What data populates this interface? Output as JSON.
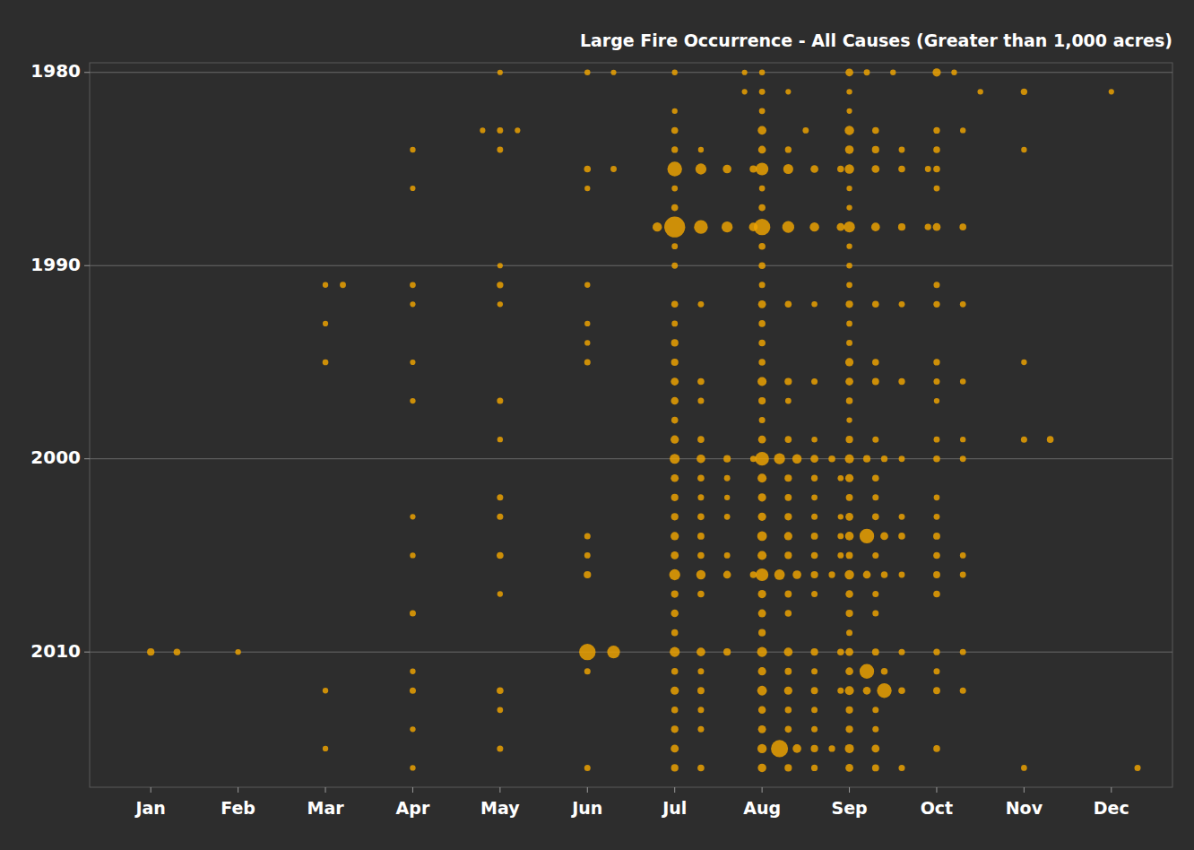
{
  "chart_data": {
    "type": "bubble",
    "title": "Large Fire Occurrence - All Causes (Greater than 1,000 acres)",
    "color": "#f0a500",
    "grid": "y",
    "xlim": [
      0.3,
      12.7
    ],
    "xticks": [
      {
        "value": 1,
        "label": "Jan"
      },
      {
        "value": 2,
        "label": "Feb"
      },
      {
        "value": 3,
        "label": "Mar"
      },
      {
        "value": 4,
        "label": "Apr"
      },
      {
        "value": 5,
        "label": "May"
      },
      {
        "value": 6,
        "label": "Jun"
      },
      {
        "value": 7,
        "label": "Jul"
      },
      {
        "value": 8,
        "label": "Aug"
      },
      {
        "value": 9,
        "label": "Sep"
      },
      {
        "value": 10,
        "label": "Oct"
      },
      {
        "value": 11,
        "label": "Nov"
      },
      {
        "value": 12,
        "label": "Dec"
      }
    ],
    "ylim": [
      2017.0,
      1979.5
    ],
    "yticks": [
      1980,
      1990,
      2000,
      2010
    ],
    "x": [
      5.0,
      6.0,
      6.3,
      7.0,
      7.8,
      8.0,
      9.0,
      9.2,
      9.5,
      10.0,
      10.2,
      7.8,
      8.0,
      8.3,
      9.0,
      10.5,
      11.0,
      12.0,
      7.0,
      8.0,
      9.0,
      4.8,
      5.0,
      5.2,
      7.0,
      8.0,
      8.5,
      9.0,
      9.3,
      10.0,
      10.3,
      4.0,
      5.0,
      7.0,
      7.3,
      8.0,
      8.3,
      9.0,
      9.3,
      9.6,
      10.0,
      11.0,
      6.0,
      6.3,
      7.0,
      7.3,
      7.6,
      7.9,
      8.0,
      8.3,
      8.6,
      8.9,
      9.0,
      9.3,
      9.6,
      9.9,
      10.0,
      4.0,
      6.0,
      7.0,
      8.0,
      9.0,
      10.0,
      7.0,
      8.0,
      9.0,
      6.8,
      7.0,
      7.3,
      7.6,
      7.9,
      8.0,
      8.3,
      8.6,
      8.9,
      9.0,
      9.3,
      9.6,
      9.9,
      10.0,
      10.3,
      7.0,
      8.0,
      9.0,
      5.0,
      7.0,
      8.0,
      9.0,
      3.0,
      3.2,
      4.0,
      5.0,
      6.0,
      8.0,
      9.0,
      10.0,
      4.0,
      5.0,
      7.0,
      7.3,
      8.0,
      8.3,
      8.6,
      9.0,
      9.3,
      9.6,
      10.0,
      10.3,
      3.0,
      6.0,
      7.0,
      8.0,
      9.0,
      6.0,
      7.0,
      8.0,
      9.0,
      3.0,
      4.0,
      6.0,
      7.0,
      8.0,
      9.0,
      9.3,
      10.0,
      11.0,
      7.0,
      7.3,
      8.0,
      8.3,
      8.6,
      9.0,
      9.3,
      9.6,
      10.0,
      10.3,
      4.0,
      5.0,
      7.0,
      7.3,
      8.0,
      8.3,
      9.0,
      10.0,
      7.0,
      8.0,
      9.0,
      5.0,
      7.0,
      7.3,
      8.0,
      8.3,
      8.6,
      9.0,
      9.3,
      10.0,
      10.3,
      11.0,
      11.3,
      7.0,
      7.3,
      7.6,
      7.9,
      8.0,
      8.2,
      8.4,
      8.6,
      8.8,
      9.0,
      9.2,
      9.4,
      9.6,
      10.0,
      10.3,
      7.0,
      7.3,
      7.6,
      8.0,
      8.3,
      8.6,
      8.9,
      9.0,
      9.3,
      5.0,
      7.0,
      7.3,
      7.6,
      8.0,
      8.3,
      8.6,
      9.0,
      9.3,
      10.0,
      4.0,
      5.0,
      7.0,
      7.3,
      7.6,
      8.0,
      8.3,
      8.6,
      8.9,
      9.0,
      9.3,
      9.6,
      10.0,
      6.0,
      7.0,
      7.3,
      8.0,
      8.3,
      8.6,
      8.9,
      9.0,
      9.2,
      9.4,
      9.6,
      10.0,
      4.0,
      5.0,
      6.0,
      7.0,
      7.3,
      7.6,
      8.0,
      8.3,
      8.6,
      8.9,
      9.0,
      9.3,
      10.0,
      10.3,
      6.0,
      7.0,
      7.3,
      7.6,
      7.9,
      8.0,
      8.2,
      8.4,
      8.6,
      8.8,
      9.0,
      9.2,
      9.4,
      9.6,
      10.0,
      10.3,
      5.0,
      7.0,
      7.3,
      8.0,
      8.3,
      8.6,
      9.0,
      9.3,
      10.0,
      4.0,
      7.0,
      8.0,
      8.3,
      9.0,
      9.3,
      7.0,
      8.0,
      9.0,
      1.0,
      1.3,
      2.0,
      6.0,
      6.3,
      7.0,
      7.3,
      7.6,
      8.0,
      8.3,
      8.6,
      8.9,
      9.0,
      9.3,
      9.6,
      10.0,
      10.3,
      4.0,
      6.0,
      7.0,
      7.3,
      8.0,
      8.3,
      8.6,
      9.0,
      9.2,
      9.4,
      10.0,
      3.0,
      4.0,
      5.0,
      7.0,
      7.3,
      8.0,
      8.3,
      8.6,
      8.9,
      9.0,
      9.2,
      9.4,
      9.6,
      10.0,
      10.3,
      5.0,
      7.0,
      7.3,
      8.0,
      8.3,
      8.6,
      9.0,
      9.3,
      4.0,
      7.0,
      7.3,
      8.0,
      8.3,
      8.6,
      9.0,
      9.3,
      3.0,
      5.0,
      7.0,
      8.0,
      8.2,
      8.4,
      8.6,
      8.8,
      9.0,
      9.3,
      10.0,
      4.0,
      6.0,
      7.0,
      7.3,
      8.0,
      8.3,
      8.6,
      9.0,
      9.3,
      9.6,
      11.0,
      12.3
    ],
    "values": [
      1980,
      1980,
      1980,
      1980,
      1980,
      1980,
      1980,
      1980,
      1980,
      1980,
      1980,
      1981,
      1981,
      1981,
      1981,
      1981,
      1981,
      1981,
      1982,
      1982,
      1982,
      1983,
      1983,
      1983,
      1983,
      1983,
      1983,
      1983,
      1983,
      1983,
      1983,
      1984,
      1984,
      1984,
      1984,
      1984,
      1984,
      1984,
      1984,
      1984,
      1984,
      1984,
      1985,
      1985,
      1985,
      1985,
      1985,
      1985,
      1985,
      1985,
      1985,
      1985,
      1985,
      1985,
      1985,
      1985,
      1985,
      1986,
      1986,
      1986,
      1986,
      1986,
      1986,
      1987,
      1987,
      1987,
      1988,
      1988,
      1988,
      1988,
      1988,
      1988,
      1988,
      1988,
      1988,
      1988,
      1988,
      1988,
      1988,
      1988,
      1988,
      1989,
      1989,
      1989,
      1990,
      1990,
      1990,
      1990,
      1991,
      1991,
      1991,
      1991,
      1991,
      1991,
      1991,
      1991,
      1992,
      1992,
      1992,
      1992,
      1992,
      1992,
      1992,
      1992,
      1992,
      1992,
      1992,
      1992,
      1993,
      1993,
      1993,
      1993,
      1993,
      1994,
      1994,
      1994,
      1994,
      1995,
      1995,
      1995,
      1995,
      1995,
      1995,
      1995,
      1995,
      1995,
      1996,
      1996,
      1996,
      1996,
      1996,
      1996,
      1996,
      1996,
      1996,
      1996,
      1997,
      1997,
      1997,
      1997,
      1997,
      1997,
      1997,
      1997,
      1998,
      1998,
      1998,
      1999,
      1999,
      1999,
      1999,
      1999,
      1999,
      1999,
      1999,
      1999,
      1999,
      1999,
      1999,
      2000,
      2000,
      2000,
      2000,
      2000,
      2000,
      2000,
      2000,
      2000,
      2000,
      2000,
      2000,
      2000,
      2000,
      2000,
      2001,
      2001,
      2001,
      2001,
      2001,
      2001,
      2001,
      2001,
      2001,
      2002,
      2002,
      2002,
      2002,
      2002,
      2002,
      2002,
      2002,
      2002,
      2002,
      2003,
      2003,
      2003,
      2003,
      2003,
      2003,
      2003,
      2003,
      2003,
      2003,
      2003,
      2003,
      2003,
      2004,
      2004,
      2004,
      2004,
      2004,
      2004,
      2004,
      2004,
      2004,
      2004,
      2004,
      2004,
      2005,
      2005,
      2005,
      2005,
      2005,
      2005,
      2005,
      2005,
      2005,
      2005,
      2005,
      2005,
      2005,
      2005,
      2006,
      2006,
      2006,
      2006,
      2006,
      2006,
      2006,
      2006,
      2006,
      2006,
      2006,
      2006,
      2006,
      2006,
      2006,
      2006,
      2007,
      2007,
      2007,
      2007,
      2007,
      2007,
      2007,
      2007,
      2007,
      2008,
      2008,
      2008,
      2008,
      2008,
      2008,
      2009,
      2009,
      2009,
      2010,
      2010,
      2010,
      2010,
      2010,
      2010,
      2010,
      2010,
      2010,
      2010,
      2010,
      2010,
      2010,
      2010,
      2010,
      2010,
      2010,
      2011,
      2011,
      2011,
      2011,
      2011,
      2011,
      2011,
      2011,
      2011,
      2011,
      2011,
      2012,
      2012,
      2012,
      2012,
      2012,
      2012,
      2012,
      2012,
      2012,
      2012,
      2012,
      2012,
      2012,
      2012,
      2012,
      2013,
      2013,
      2013,
      2013,
      2013,
      2013,
      2013,
      2013,
      2014,
      2014,
      2014,
      2014,
      2014,
      2014,
      2014,
      2014,
      2015,
      2015,
      2015,
      2015,
      2015,
      2015,
      2015,
      2015,
      2015,
      2015,
      2015,
      2016,
      2016,
      2016,
      2016,
      2016,
      2016,
      2016,
      2016,
      2016,
      2016,
      2016,
      2016
    ],
    "sizes": [
      1100,
      1300,
      1100,
      1200,
      1100,
      1300,
      3000,
      1500,
      1200,
      3500,
      1200,
      1100,
      1500,
      1100,
      1200,
      1200,
      1800,
      1100,
      1200,
      1500,
      1100,
      1100,
      1500,
      1100,
      2000,
      4000,
      1500,
      5000,
      2000,
      1800,
      1200,
      1200,
      1500,
      1800,
      1200,
      3000,
      1800,
      4000,
      2500,
      1500,
      2000,
      1200,
      2000,
      1500,
      18000,
      8000,
      4000,
      2500,
      12000,
      6000,
      3000,
      2000,
      5000,
      3000,
      2000,
      1500,
      2000,
      1100,
      1200,
      1500,
      1400,
      1200,
      1500,
      2000,
      2000,
      1200,
      5000,
      50000,
      15000,
      8000,
      4000,
      25000,
      10000,
      5000,
      3000,
      8000,
      4000,
      2500,
      1800,
      3000,
      2000,
      1500,
      2000,
      1200,
      1100,
      1500,
      2000,
      1300,
      1200,
      1500,
      1400,
      1800,
      1200,
      1600,
      1400,
      1600,
      1100,
      1200,
      2000,
      1500,
      3000,
      2000,
      1300,
      2500,
      2000,
      1500,
      1800,
      1400,
      1100,
      1200,
      1500,
      2000,
      1400,
      1200,
      2500,
      2000,
      1500,
      1400,
      1100,
      1600,
      2500,
      2000,
      3500,
      2000,
      1800,
      1200,
      3000,
      2000,
      4500,
      2500,
      1600,
      3000,
      2200,
      1800,
      1600,
      1300,
      1200,
      1600,
      2800,
      1600,
      2500,
      1500,
      2000,
      1200,
      2000,
      1600,
      1200,
      1200,
      3500,
      2000,
      3000,
      2000,
      1300,
      2500,
      1600,
      1500,
      1200,
      1600,
      2000,
      6000,
      4000,
      2500,
      1600,
      15000,
      8000,
      5000,
      3000,
      2000,
      4500,
      2500,
      1800,
      1500,
      2000,
      1500,
      3000,
      2000,
      1500,
      4500,
      2500,
      1800,
      1400,
      3500,
      2000,
      1600,
      2500,
      1600,
      1200,
      3500,
      2200,
      1500,
      2200,
      1600,
      1400,
      1100,
      1600,
      2500,
      2000,
      1400,
      3500,
      2500,
      1600,
      1200,
      3000,
      2000,
      1500,
      1500,
      1600,
      3500,
      2200,
      5500,
      3500,
      2200,
      1500,
      4000,
      18000,
      3000,
      2000,
      2200,
      1200,
      2000,
      1500,
      3000,
      2000,
      1500,
      4500,
      2500,
      2000,
      1500,
      2200,
      1600,
      2000,
      1400,
      2500,
      8000,
      5000,
      3000,
      2000,
      12000,
      7000,
      4000,
      2500,
      1800,
      5000,
      3000,
      2000,
      1500,
      2200,
      1500,
      1200,
      2500,
      2000,
      3500,
      2200,
      1600,
      2800,
      1600,
      2000,
      1600,
      2800,
      3200,
      2000,
      2500,
      1600,
      2000,
      2500,
      1600,
      2500,
      2000,
      1200,
      25000,
      12000,
      6000,
      4000,
      2500,
      6000,
      4000,
      2500,
      2000,
      3000,
      2200,
      1600,
      1800,
      1500,
      1200,
      1600,
      2000,
      1600,
      3500,
      2200,
      1600,
      3000,
      18000,
      2000,
      1600,
      1200,
      1600,
      2000,
      3500,
      2200,
      5500,
      3500,
      2200,
      1600,
      4500,
      3000,
      18000,
      2000,
      2200,
      1600,
      1400,
      2000,
      1600,
      2800,
      2000,
      1600,
      2500,
      1600,
      1200,
      2500,
      1600,
      3200,
      2000,
      1600,
      2500,
      1600,
      1200,
      1600,
      3200,
      5000,
      28000,
      4000,
      2500,
      1800,
      4500,
      3000,
      2000,
      1200,
      1600,
      2500,
      2000,
      3800,
      2500,
      1800,
      3000,
      2200,
      1600,
      1400,
      1600
    ]
  }
}
